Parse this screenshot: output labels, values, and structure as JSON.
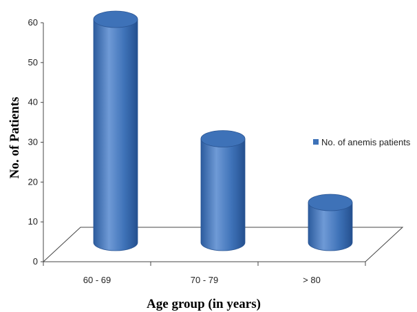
{
  "chart_data": {
    "type": "bar",
    "style": "3d-cylinder",
    "categories": [
      "60 - 69",
      "70 - 79",
      "> 80"
    ],
    "series": [
      {
        "name": "No. of anemis patients",
        "values": [
          60,
          30,
          14
        ]
      }
    ],
    "xlabel": "Age group (in years)",
    "ylabel": "No. of Patients",
    "ylim": [
      0,
      60
    ],
    "yticks": [
      0,
      10,
      20,
      30,
      40,
      50,
      60
    ],
    "legend_position": "right",
    "grid": false,
    "colors": {
      "bar": "#3e72b8",
      "bar_light": "#6f9ad6",
      "bar_dark": "#24508f"
    }
  }
}
